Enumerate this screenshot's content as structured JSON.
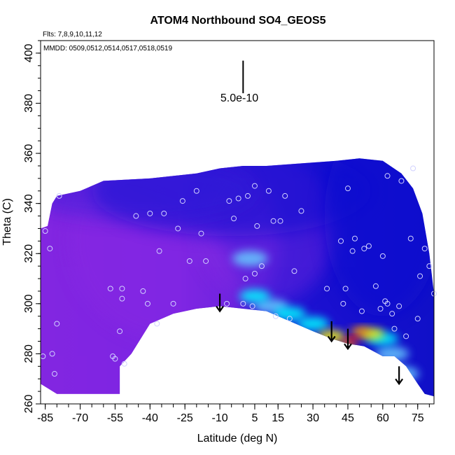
{
  "chart_data": {
    "type": "heatmap",
    "title": "ATOM4 Northbound SO4_GEOS5",
    "subtitle_flights": "Flts: 7,8,9,10,11,12",
    "subtitle_dates": "MMDD: 0509,0512,0514,0517,0518,0519",
    "xlabel": "Latitude (deg N)",
    "ylabel": "Theta (C)",
    "xlim": [
      -87,
      82
    ],
    "ylim": [
      260,
      405
    ],
    "x_ticks": [
      -85,
      -70,
      -55,
      -40,
      -25,
      -10,
      5,
      15,
      30,
      45,
      60,
      75
    ],
    "y_ticks": [
      260,
      280,
      300,
      320,
      340,
      360,
      380,
      400
    ],
    "scale_annotation": "5.0e-10",
    "boundary": {
      "top": [
        [
          -87,
          330
        ],
        [
          -84,
          331
        ],
        [
          -82,
          340
        ],
        [
          -80,
          343
        ],
        [
          -70,
          345
        ],
        [
          -60,
          349
        ],
        [
          -40,
          350
        ],
        [
          -20,
          352
        ],
        [
          -10,
          354
        ],
        [
          0,
          355
        ],
        [
          10,
          355
        ],
        [
          25,
          356
        ],
        [
          40,
          357
        ],
        [
          50,
          358
        ],
        [
          60,
          357
        ],
        [
          68,
          352
        ],
        [
          73,
          346
        ],
        [
          77,
          336
        ],
        [
          80,
          320
        ],
        [
          82,
          304
        ]
      ],
      "bottom": [
        [
          82,
          263
        ],
        [
          78,
          264
        ],
        [
          75,
          268
        ],
        [
          70,
          275
        ],
        [
          65,
          279
        ],
        [
          60,
          279
        ],
        [
          52,
          283
        ],
        [
          45,
          284
        ],
        [
          38,
          286
        ],
        [
          30,
          289
        ],
        [
          20,
          293
        ],
        [
          10,
          297
        ],
        [
          0,
          298
        ],
        [
          -10,
          299
        ],
        [
          -20,
          298
        ],
        [
          -30,
          296
        ],
        [
          -40,
          292
        ],
        [
          -48,
          280
        ],
        [
          -53,
          275
        ],
        [
          -53,
          264
        ],
        [
          -80,
          264
        ],
        [
          -87,
          268
        ]
      ]
    },
    "data_points": [
      [
        -86,
        279
      ],
      [
        -85,
        329
      ],
      [
        -83,
        322
      ],
      [
        -82,
        280
      ],
      [
        -81,
        272
      ],
      [
        -80,
        292
      ],
      [
        -79,
        343
      ],
      [
        -57,
        306
      ],
      [
        -56,
        279
      ],
      [
        -55,
        278
      ],
      [
        -53,
        289
      ],
      [
        -52,
        302
      ],
      [
        -52,
        306
      ],
      [
        -51,
        276
      ],
      [
        -46,
        335
      ],
      [
        -43,
        305
      ],
      [
        -41,
        300
      ],
      [
        -40,
        336
      ],
      [
        -37,
        292
      ],
      [
        -36,
        321
      ],
      [
        -34,
        336
      ],
      [
        -30,
        300
      ],
      [
        -28,
        330
      ],
      [
        -26,
        341
      ],
      [
        -23,
        317
      ],
      [
        -20,
        345
      ],
      [
        -18,
        328
      ],
      [
        -16,
        317
      ],
      [
        -7,
        300
      ],
      [
        -6,
        341
      ],
      [
        -4,
        334
      ],
      [
        -2,
        342
      ],
      [
        0,
        300
      ],
      [
        1,
        310
      ],
      [
        2,
        343
      ],
      [
        4,
        299
      ],
      [
        5,
        347
      ],
      [
        5,
        312
      ],
      [
        6,
        331
      ],
      [
        8,
        315
      ],
      [
        11,
        345
      ],
      [
        13,
        333
      ],
      [
        14,
        295
      ],
      [
        16,
        333
      ],
      [
        18,
        343
      ],
      [
        20,
        294
      ],
      [
        22,
        313
      ],
      [
        25,
        337
      ],
      [
        36,
        306
      ],
      [
        42,
        325
      ],
      [
        43,
        300
      ],
      [
        44,
        306
      ],
      [
        45,
        346
      ],
      [
        47,
        321
      ],
      [
        48,
        326
      ],
      [
        51,
        297
      ],
      [
        52,
        322
      ],
      [
        54,
        323
      ],
      [
        57,
        307
      ],
      [
        59,
        298
      ],
      [
        60,
        319
      ],
      [
        61,
        301
      ],
      [
        62,
        351
      ],
      [
        62,
        300
      ],
      [
        64,
        296
      ],
      [
        65,
        290
      ],
      [
        67,
        299
      ],
      [
        68,
        349
      ],
      [
        70,
        287
      ],
      [
        72,
        326
      ],
      [
        73,
        354
      ],
      [
        75,
        294
      ],
      [
        76,
        311
      ],
      [
        78,
        322
      ],
      [
        80,
        315
      ],
      [
        82,
        304
      ]
    ],
    "highlights": [
      {
        "lat": 47,
        "theta": 286,
        "level": 1.0
      },
      {
        "lat": 45,
        "theta": 284,
        "level": 0.85
      },
      {
        "lat": 50,
        "theta": 289,
        "level": 0.8
      },
      {
        "lat": 38,
        "theta": 287,
        "level": 0.55
      },
      {
        "lat": 55,
        "theta": 288,
        "level": 0.6
      },
      {
        "lat": 30,
        "theta": 292,
        "level": 0.4
      },
      {
        "lat": 60,
        "theta": 286,
        "level": 0.45
      },
      {
        "lat": 5,
        "theta": 303,
        "level": 0.45
      },
      {
        "lat": 3,
        "theta": 318,
        "level": 0.3
      },
      {
        "lat": 20,
        "theta": 296,
        "level": 0.4
      },
      {
        "lat": 64,
        "theta": 280,
        "level": 0.35
      },
      {
        "lat": 68,
        "theta": 272,
        "level": 0.3
      },
      {
        "lat": 12,
        "theta": 299,
        "level": 0.35
      }
    ],
    "arrows": [
      {
        "lat": -10,
        "theta_top": 304,
        "theta_bottom": 297
      },
      {
        "lat": 38,
        "theta_top": 293,
        "theta_bottom": 285
      },
      {
        "lat": 45,
        "theta_top": 290,
        "theta_bottom": 282
      },
      {
        "lat": 67,
        "theta_top": 275,
        "theta_bottom": 268
      }
    ],
    "scale_bar": {
      "lat": 0,
      "theta_top": 397,
      "theta_bottom": 384
    },
    "colors": {
      "background_low": "#2a1ad8",
      "background_purple": "#8a2be2",
      "background_blue": "#1010d0",
      "cyan": "#00ffff",
      "light_blue": "#66ccff",
      "yellow": "#ffff00",
      "orange": "#ff8c00",
      "red": "#ff0000",
      "marker": "#d0d0ff"
    }
  }
}
